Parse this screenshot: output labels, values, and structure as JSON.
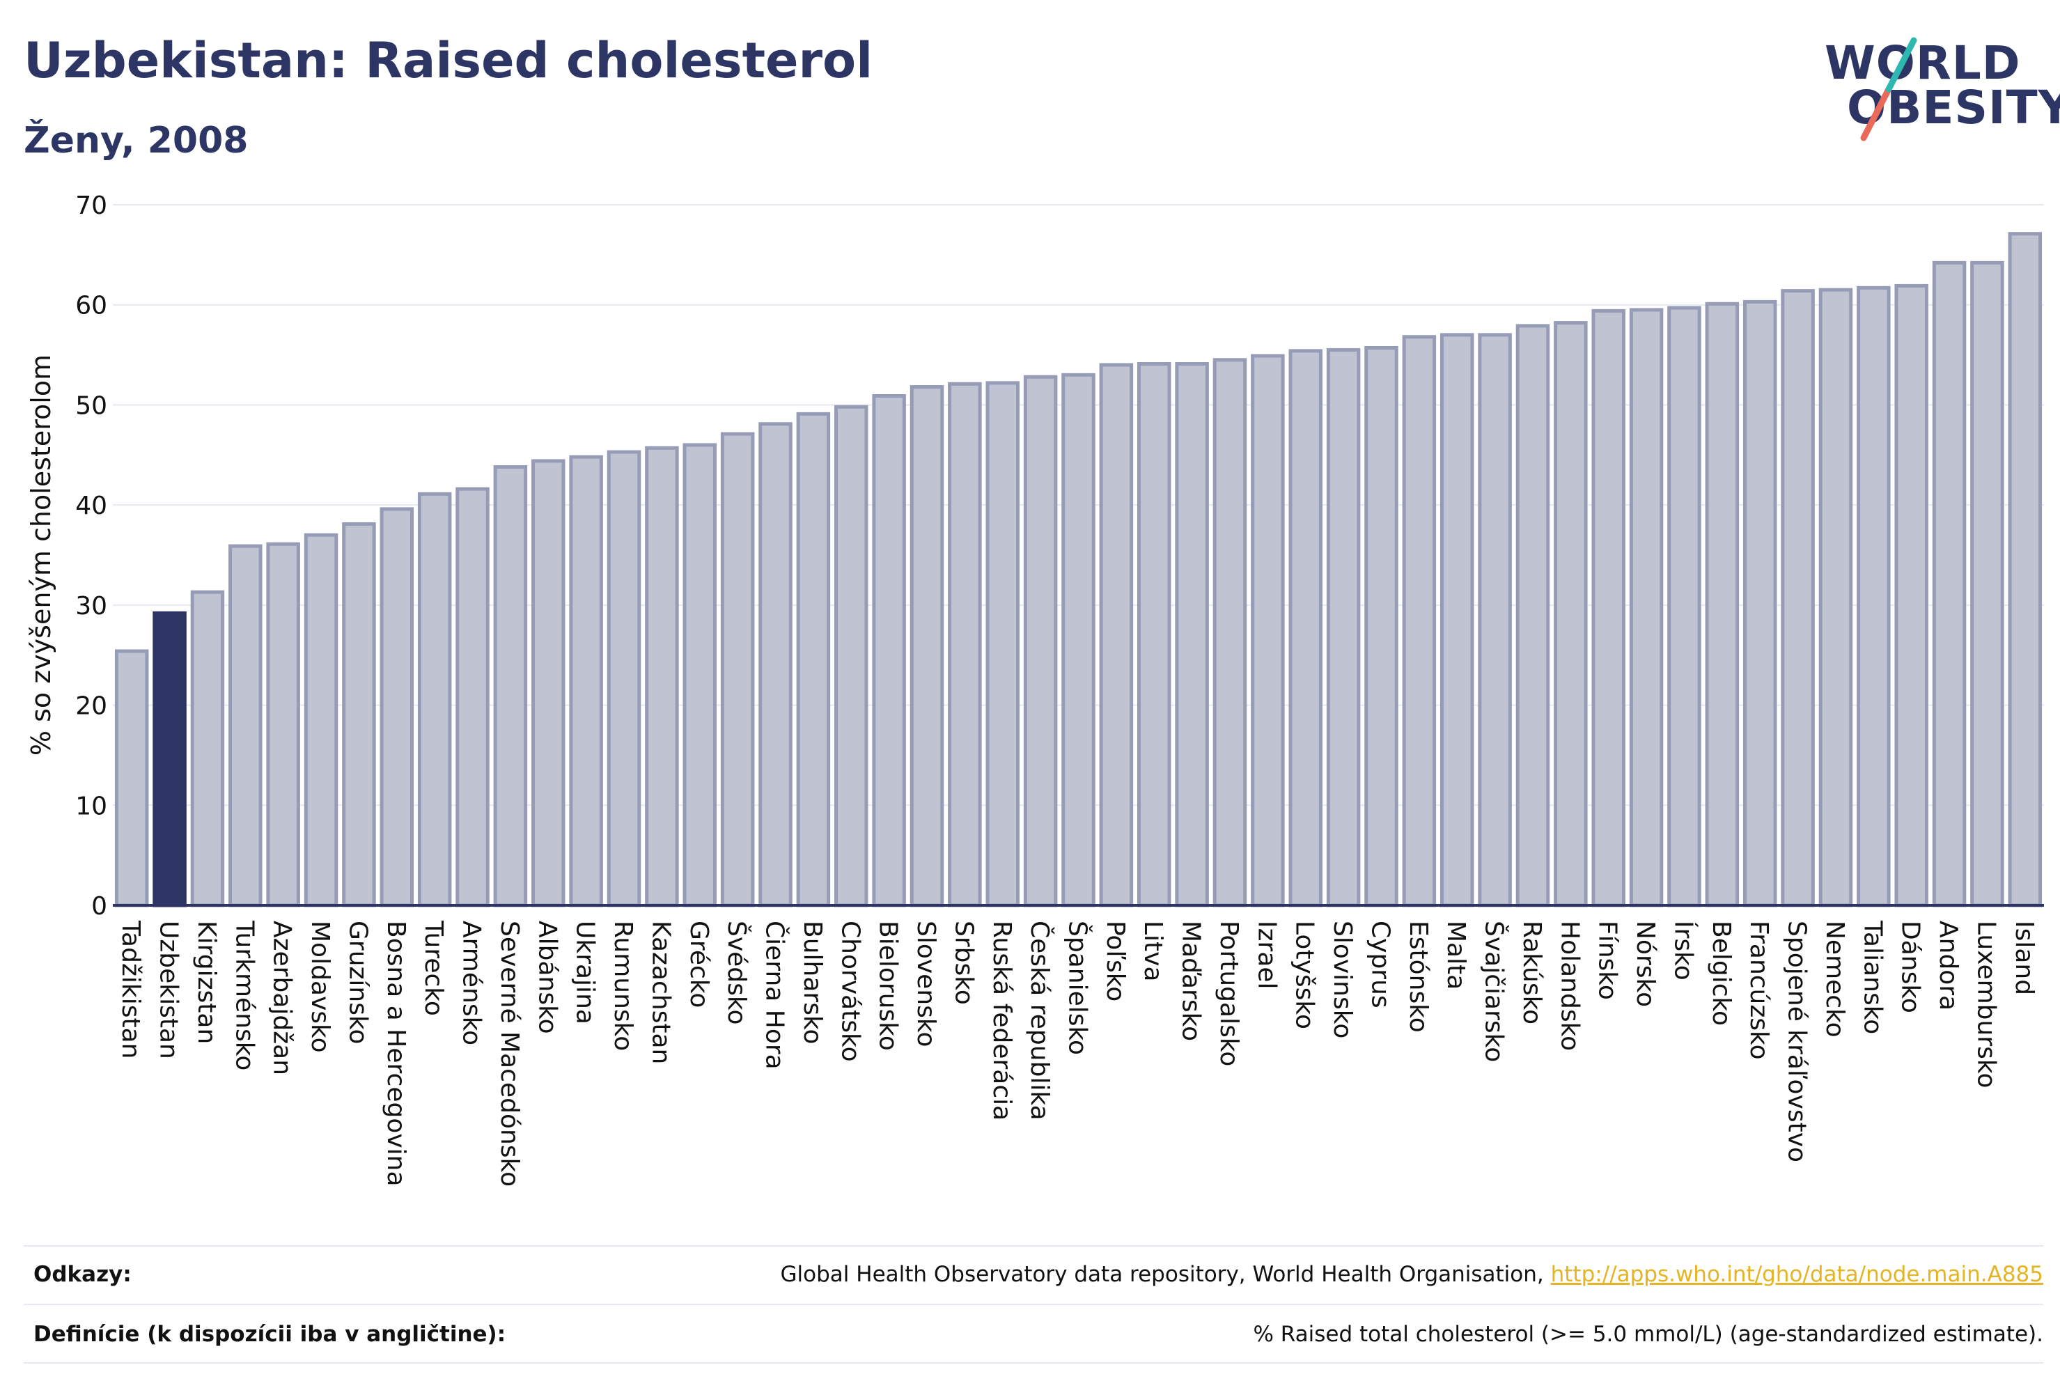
{
  "header": {
    "title": "Uzbekistan: Raised cholesterol",
    "subtitle": "Ženy, 2008"
  },
  "logo": {
    "line1": "WORLD",
    "line2": "OBESITY"
  },
  "colors": {
    "bar_default": "#bfc3d2",
    "bar_default_stroke": "#969cb5",
    "bar_highlight": "#2c3564",
    "axis": "#2c3564",
    "grid": "#e6e9ef",
    "logo_slash_teal": "#2fb8b0",
    "logo_slash_coral": "#ea6a5a",
    "link": "#e6b422"
  },
  "chart_data": {
    "type": "bar",
    "ylabel": "% so zvýšeným cholesterolom",
    "ylim": [
      0,
      70
    ],
    "yticks": [
      0,
      10,
      20,
      30,
      40,
      50,
      60,
      70
    ],
    "grid": true,
    "highlight": "Uzbekistan",
    "categories": [
      "Tadžikistan",
      "Uzbekistan",
      "Kirgizstan",
      "Turkménsko",
      "Azerbajdžan",
      "Moldavsko",
      "Gruzínsko",
      "Bosna a Hercegovina",
      "Turecko",
      "Arménsko",
      "Severné Macedónsko",
      "Albánsko",
      "Ukrajina",
      "Rumunsko",
      "Kazachstan",
      "Grécko",
      "Švédsko",
      "Čierna Hora",
      "Bulharsko",
      "Chorvátsko",
      "Bielorusko",
      "Slovensko",
      "Srbsko",
      "Ruská federácia",
      "Česká republika",
      "Španielsko",
      "Poľsko",
      "Litva",
      "Maďarsko",
      "Portugalsko",
      "Izrael",
      "Lotyšsko",
      "Slovinsko",
      "Cyprus",
      "Estónsko",
      "Malta",
      "Švajčiarsko",
      "Rakúsko",
      "Holandsko",
      "Fínsko",
      "Nórsko",
      "Írsko",
      "Belgicko",
      "Francúzsko",
      "Spojené kráľovstvo",
      "Nemecko",
      "Taliansko",
      "Dánsko",
      "Andora",
      "Luxembursko",
      "Island"
    ],
    "values": [
      25.4,
      29.2,
      31.3,
      35.9,
      36.1,
      37.0,
      38.1,
      39.6,
      41.1,
      41.6,
      43.8,
      44.4,
      44.8,
      45.3,
      45.7,
      46.0,
      47.1,
      48.1,
      49.1,
      49.8,
      50.9,
      51.8,
      52.1,
      52.2,
      52.8,
      53.0,
      54.0,
      54.1,
      54.1,
      54.5,
      54.9,
      55.4,
      55.5,
      55.7,
      56.8,
      57.0,
      57.0,
      57.9,
      58.2,
      59.4,
      59.5,
      59.7,
      60.1,
      60.3,
      61.4,
      61.5,
      61.7,
      61.9,
      64.2,
      64.2,
      67.1
    ]
  },
  "footer": {
    "refs_label": "Odkazy:",
    "refs_text": "Global Health Observatory data repository, World Health Organisation, ",
    "refs_link": "http://apps.who.int/gho/data/node.main.A885",
    "defs_label": "Definície (k dispozícii iba v angličtine):",
    "defs_text": "% Raised total cholesterol (>= 5.0 mmol/L) (age-standardized estimate)."
  }
}
